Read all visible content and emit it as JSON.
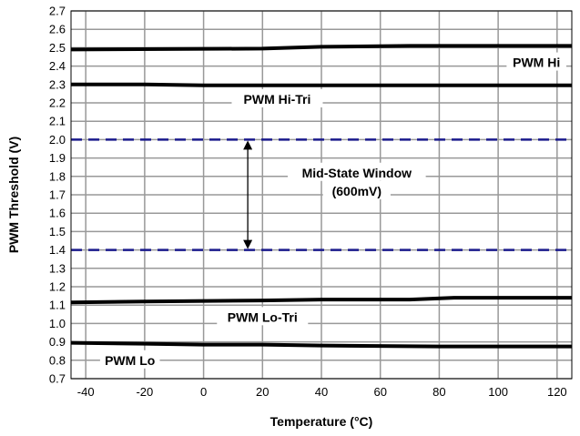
{
  "chart_data": {
    "type": "line",
    "title": "",
    "xlabel": "Temperature (°C)",
    "ylabel": "PWM Threshold (V)",
    "xlim": [
      -45,
      125
    ],
    "ylim": [
      0.7,
      2.7
    ],
    "xticks": [
      -40,
      -20,
      0,
      20,
      40,
      60,
      80,
      100,
      120
    ],
    "yticks": [
      0.7,
      0.8,
      0.9,
      1.0,
      1.1,
      1.2,
      1.3,
      1.4,
      1.5,
      1.6,
      1.7,
      1.8,
      1.9,
      2.0,
      2.1,
      2.2,
      2.3,
      2.4,
      2.5,
      2.6,
      2.7
    ],
    "grid": true,
    "series": [
      {
        "name": "PWM Hi",
        "style": "solid",
        "color": "#000000",
        "x": [
          -45,
          20,
          40,
          70,
          125
        ],
        "y": [
          2.49,
          2.495,
          2.505,
          2.51,
          2.51
        ]
      },
      {
        "name": "PWM Hi-Tri",
        "style": "solid",
        "color": "#000000",
        "x": [
          -45,
          -20,
          0,
          125
        ],
        "y": [
          2.3,
          2.3,
          2.295,
          2.295
        ]
      },
      {
        "name": "PWM Lo-Tri",
        "style": "solid",
        "color": "#000000",
        "x": [
          -45,
          -20,
          20,
          40,
          70,
          85,
          125
        ],
        "y": [
          1.115,
          1.12,
          1.125,
          1.13,
          1.13,
          1.14,
          1.14
        ]
      },
      {
        "name": "PWM Lo",
        "style": "solid",
        "color": "#000000",
        "x": [
          -45,
          -20,
          0,
          20,
          40,
          80,
          125
        ],
        "y": [
          0.895,
          0.89,
          0.885,
          0.885,
          0.88,
          0.875,
          0.875
        ]
      },
      {
        "name": "",
        "style": "dashed",
        "color": "#1a1a8c",
        "x": [
          -45,
          125
        ],
        "y": [
          2.0,
          2.0
        ]
      },
      {
        "name": "",
        "style": "dashed",
        "color": "#1a1a8c",
        "x": [
          -45,
          125
        ],
        "y": [
          1.4,
          1.4
        ]
      }
    ],
    "annotations": [
      {
        "key": "pwm_hi",
        "text": "PWM Hi",
        "x": 113,
        "y": 2.42
      },
      {
        "key": "pwm_hi_tri",
        "text": "PWM Hi-Tri",
        "x": 25,
        "y": 2.22
      },
      {
        "key": "mid_state_1",
        "text": "Mid-State Window",
        "x": 52,
        "y": 1.82
      },
      {
        "key": "mid_state_2",
        "text": "(600mV)",
        "x": 52,
        "y": 1.72
      },
      {
        "key": "pwm_lo_tri",
        "text": "PWM Lo-Tri",
        "x": 20,
        "y": 1.035
      },
      {
        "key": "pwm_lo",
        "text": "PWM Lo",
        "x": -25,
        "y": 0.8
      }
    ],
    "arrow": {
      "x": 15,
      "y_from": 2.0,
      "y_to": 1.4
    },
    "colors": {
      "grid": "#999999",
      "dashed": "#1a1a8c",
      "curve": "#000000"
    }
  }
}
